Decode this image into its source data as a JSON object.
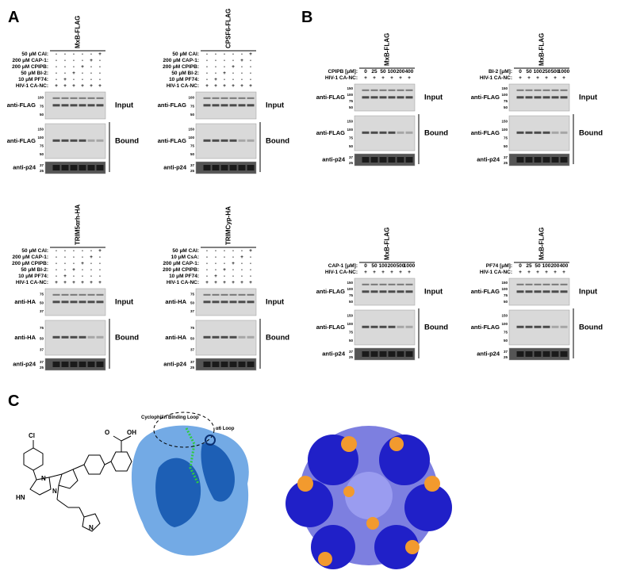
{
  "panel_labels": [
    "A",
    "B",
    "C"
  ],
  "panels": [
    {
      "title": "MxB-FLAG",
      "rows": [
        {
          "label": "50 μM CAI:",
          "signs": [
            "-",
            "-",
            "-",
            "-",
            "-",
            "+"
          ]
        },
        {
          "label": "200 μM CAP-1:",
          "signs": [
            "-",
            "-",
            "-",
            "-",
            "+",
            "-"
          ]
        },
        {
          "label": "200 μM CPIPB:",
          "signs": [
            "-",
            "-",
            "-",
            "+",
            "-",
            "-"
          ]
        },
        {
          "label": "50 μM BI-2:",
          "signs": [
            "-",
            "-",
            "+",
            "-",
            "-",
            "-"
          ]
        },
        {
          "label": "10 μM PF74:",
          "signs": [
            "-",
            "+",
            "-",
            "-",
            "-",
            "-"
          ]
        },
        {
          "label": "HIV-1 CA-NC:",
          "signs": [
            "+",
            "+",
            "+",
            "+",
            "+",
            "+"
          ]
        }
      ],
      "blots": [
        {
          "antibody": "anti-FLAG",
          "fraction": "Input",
          "markers": [
            "100",
            "75",
            "50"
          ]
        },
        {
          "antibody": "anti-FLAG",
          "fraction": "Bound",
          "markers": [
            "150",
            "100",
            "75",
            "50"
          ]
        },
        {
          "antibody": "anti-p24",
          "markers": [
            "37",
            "25"
          ]
        }
      ]
    },
    {
      "title": "CPSF6-FLAG",
      "rows": [
        {
          "label": "50 μM CAI:",
          "signs": [
            "-",
            "-",
            "-",
            "-",
            "-",
            "+"
          ]
        },
        {
          "label": "200 μM CAP-1:",
          "signs": [
            "-",
            "-",
            "-",
            "-",
            "+",
            "-"
          ]
        },
        {
          "label": "200 μM CPIPB:",
          "signs": [
            "-",
            "-",
            "-",
            "+",
            "-",
            "-"
          ]
        },
        {
          "label": "50 μM BI-2:",
          "signs": [
            "-",
            "-",
            "+",
            "-",
            "-",
            "-"
          ]
        },
        {
          "label": "10 μM PF74:",
          "signs": [
            "-",
            "+",
            "-",
            "-",
            "-",
            "-"
          ]
        },
        {
          "label": "HIV-1 CA-NC:",
          "signs": [
            "+",
            "+",
            "+",
            "+",
            "+",
            "+"
          ]
        }
      ],
      "blots": [
        {
          "antibody": "anti-FLAG",
          "fraction": "Input",
          "markers": [
            "100",
            "75",
            "50"
          ]
        },
        {
          "antibody": "anti-FLAG",
          "fraction": "Bound",
          "markers": [
            "150",
            "100",
            "75",
            "50"
          ]
        },
        {
          "antibody": "anti-p24",
          "markers": [
            "37",
            "25"
          ]
        }
      ]
    },
    {
      "title": "TRIM5αrh-HA",
      "rows": [
        {
          "label": "50 μM CAI:",
          "signs": [
            "-",
            "-",
            "-",
            "-",
            "-",
            "+"
          ]
        },
        {
          "label": "200 μM CAP-1:",
          "signs": [
            "-",
            "-",
            "-",
            "-",
            "+",
            "-"
          ]
        },
        {
          "label": "200 μM CPIPB:",
          "signs": [
            "-",
            "-",
            "-",
            "+",
            "-",
            "-"
          ]
        },
        {
          "label": "50 μM BI-2:",
          "signs": [
            "-",
            "-",
            "+",
            "-",
            "-",
            "-"
          ]
        },
        {
          "label": "10 μM PF74:",
          "signs": [
            "-",
            "+",
            "-",
            "-",
            "-",
            "-"
          ]
        },
        {
          "label": "HIV-1 CA-NC:",
          "signs": [
            "+",
            "+",
            "+",
            "+",
            "+",
            "+"
          ]
        }
      ],
      "blots": [
        {
          "antibody": "anti-HA",
          "fraction": "Input",
          "markers": [
            "75",
            "50",
            "37"
          ]
        },
        {
          "antibody": "anti-HA",
          "fraction": "Bound",
          "markers": [
            "75",
            "50",
            "37"
          ]
        },
        {
          "antibody": "anti-p24",
          "markers": [
            "37",
            "25"
          ]
        }
      ]
    },
    {
      "title": "TRIMCyp-HA",
      "rows": [
        {
          "label": "50 μM CAI:",
          "signs": [
            "-",
            "-",
            "-",
            "-",
            "-",
            "+"
          ]
        },
        {
          "label": "10 μM CsA:",
          "signs": [
            "-",
            "-",
            "-",
            "-",
            "+",
            "-"
          ]
        },
        {
          "label": "200 μM CAP-1:",
          "signs": [
            "-",
            "-",
            "-",
            "+",
            "-",
            "-"
          ]
        },
        {
          "label": "200 μM CPIPB:",
          "signs": [
            "-",
            "-",
            "+",
            "-",
            "-",
            "-"
          ]
        },
        {
          "label": "10 μM PF74:",
          "signs": [
            "-",
            "+",
            "-",
            "-",
            "-",
            "-"
          ]
        },
        {
          "label": "HIV-1 CA-NC:",
          "signs": [
            "+",
            "+",
            "+",
            "+",
            "+",
            "+"
          ]
        }
      ],
      "blots": [
        {
          "antibody": "anti-HA",
          "fraction": "Input",
          "markers": [
            "75",
            "50",
            "37"
          ]
        },
        {
          "antibody": "anti-HA",
          "fraction": "Bound",
          "markers": [
            "75",
            "50",
            "37"
          ]
        },
        {
          "antibody": "anti-p24",
          "markers": [
            "37",
            "25"
          ]
        }
      ]
    },
    {
      "title": "MxB-FLAG",
      "rows": [
        {
          "label": "CPIPB [μM]:",
          "signs": [
            "0",
            "25",
            "50",
            "100",
            "200",
            "400"
          ]
        },
        {
          "label": "HIV-1 CA-NC:",
          "signs": [
            "+",
            "+",
            "+",
            "+",
            "+",
            "+"
          ]
        }
      ],
      "blots": [
        {
          "antibody": "anti-FLAG",
          "fraction": "Input",
          "markers": [
            "150",
            "100",
            "75",
            "50"
          ]
        },
        {
          "antibody": "anti-FLAG",
          "fraction": "Bound",
          "markers": [
            "150",
            "100",
            "75",
            "50"
          ]
        },
        {
          "antibody": "anti-p24",
          "markers": [
            "37",
            "25"
          ]
        }
      ]
    },
    {
      "title": "MxB-FLAG",
      "rows": [
        {
          "label": "BI-2 [μM]:",
          "signs": [
            "0",
            "50",
            "100",
            "250",
            "500",
            "1000"
          ]
        },
        {
          "label": "HIV-1 CA-NC:",
          "signs": [
            "+",
            "+",
            "+",
            "+",
            "+",
            "+"
          ]
        }
      ],
      "blots": [
        {
          "antibody": "anti-FLAG",
          "fraction": "Input",
          "markers": [
            "150",
            "100",
            "75",
            "50"
          ]
        },
        {
          "antibody": "anti-FLAG",
          "fraction": "Bound",
          "markers": [
            "150",
            "100",
            "75",
            "50"
          ]
        },
        {
          "antibody": "anti-p24",
          "markers": [
            "37",
            "25"
          ]
        }
      ]
    },
    {
      "title": "MxB-FLAG",
      "rows": [
        {
          "label": "CAP-1 [μM]:",
          "signs": [
            "0",
            "50",
            "100",
            "200",
            "500",
            "1000"
          ]
        },
        {
          "label": "HIV-1 CA-NC:",
          "signs": [
            "+",
            "+",
            "+",
            "+",
            "+",
            "+"
          ]
        }
      ],
      "blots": [
        {
          "antibody": "anti-FLAG",
          "fraction": "Input",
          "markers": [
            "150",
            "100",
            "75",
            "50"
          ]
        },
        {
          "antibody": "anti-FLAG",
          "fraction": "Bound",
          "markers": [
            "150",
            "100",
            "75",
            "50"
          ]
        },
        {
          "antibody": "anti-p24",
          "markers": [
            "37",
            "25"
          ]
        }
      ]
    },
    {
      "title": "MxB-FLAG",
      "rows": [
        {
          "label": "PF74 [μM]:",
          "signs": [
            "0",
            "25",
            "50",
            "100",
            "200",
            "400"
          ]
        },
        {
          "label": "HIV-1 CA-NC:",
          "signs": [
            "+",
            "+",
            "+",
            "+",
            "+",
            "+"
          ]
        }
      ],
      "blots": [
        {
          "antibody": "anti-FLAG",
          "fraction": "Input",
          "markers": [
            "150",
            "100",
            "75",
            "50"
          ]
        },
        {
          "antibody": "anti-FLAG",
          "fraction": "Bound",
          "markers": [
            "150",
            "100",
            "75",
            "50"
          ]
        },
        {
          "antibody": "anti-p24",
          "markers": [
            "37",
            "25"
          ]
        }
      ]
    }
  ],
  "structure": {
    "cyclophilin_loop": "Cyclophilin Binding Loop",
    "helix_loop": "α6 Loop",
    "atoms": [
      "Cl",
      "HN",
      "N",
      "N",
      "OH",
      "O",
      "N"
    ]
  }
}
